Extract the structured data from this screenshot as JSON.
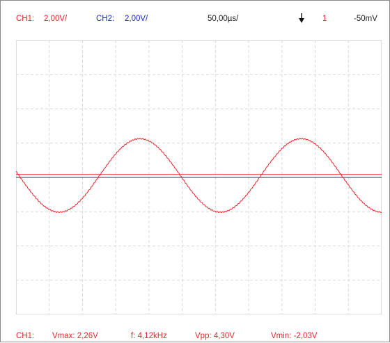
{
  "header": {
    "ch1_label": "CH1:",
    "ch1_scale": "2,00V/",
    "ch2_label": "CH2:",
    "ch2_scale": "2,00V/",
    "timebase": "50,00µs/",
    "trigger_icon": "falling-edge-arrow-icon",
    "trigger_channel": "1",
    "trigger_level": "-50mV"
  },
  "footer": {
    "channel": "CH1:",
    "vmax": "Vmax: 2,26V",
    "frequency": "f: 4,12kHz",
    "vpp": "Vpp: 4,30V",
    "vmin": "Vmin: -2,03V"
  },
  "colors": {
    "ch1": "#e8262d",
    "ch2": "#1d2bd0",
    "grid": "#d9d9d9",
    "trigger_line": "#e8262d",
    "ground_line": "#333333"
  },
  "screen": {
    "divisions_x": 11,
    "divisions_y": 8,
    "volts_per_div": 2.0,
    "time_per_div_us": 50.0,
    "trigger_level_v": -0.05,
    "frequency_khz": 4.12,
    "vmax_v": 2.26,
    "vmin_v": -2.03
  }
}
